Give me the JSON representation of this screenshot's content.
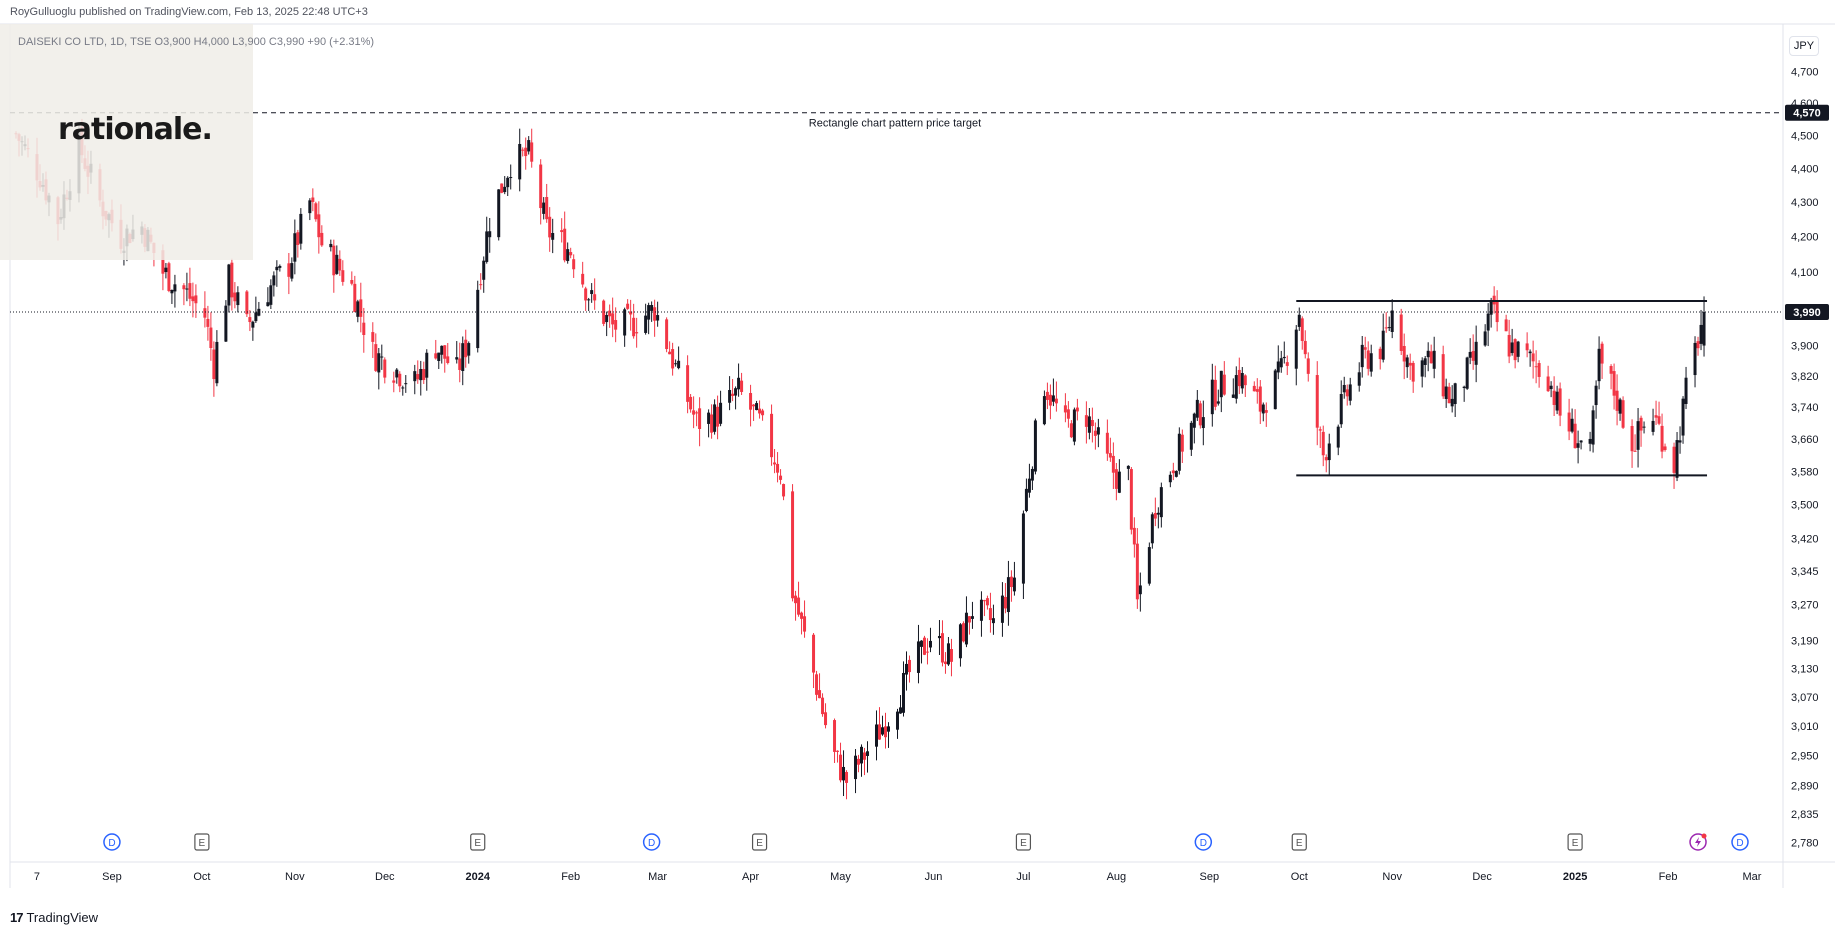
{
  "header": {
    "published": "RoyGulluoglu published on TradingView.com, Feb 13, 2025 22:48 UTC+3",
    "symbol_line": "DAISEKI CO LTD, 1D, TSE  O3,900  H4,000  L3,900  C3,990  +90 (+2.31%)"
  },
  "logo": {
    "text": "rationale."
  },
  "currency": "JPY",
  "footer": {
    "brand": "TradingView"
  },
  "annotation": {
    "text": "Rectangle chart pattern price target"
  },
  "colors": {
    "up": "#131722",
    "down": "#f23645",
    "event_d": "#2962ff",
    "event_e": "#555555",
    "price_label_bg": "#131722"
  },
  "chart_data": {
    "type": "candlestick",
    "title": "DAISEKI CO LTD, 1D, TSE",
    "ylabel": "JPY",
    "y_scale": "log",
    "ylim": [
      2770,
      4750
    ],
    "y_ticks": [
      "4,700",
      "4,600",
      "4,500",
      "4,400",
      "4,300",
      "4,200",
      "4,100",
      "4,000",
      "3,900",
      "3,820",
      "3,740",
      "3,660",
      "3,580",
      "3,500",
      "3,420",
      "3,345",
      "3,270",
      "3,190",
      "3,130",
      "3,070",
      "3,010",
      "2,950",
      "2,890",
      "2,835",
      "2,780"
    ],
    "y_tick_values": [
      4700,
      4600,
      4500,
      4400,
      4300,
      4200,
      4100,
      4000,
      3900,
      3820,
      3740,
      3660,
      3580,
      3500,
      3420,
      3345,
      3270,
      3190,
      3130,
      3070,
      3010,
      2950,
      2890,
      2835,
      2780
    ],
    "x_ticks": [
      "7",
      "Sep",
      "Oct",
      "Nov",
      "Dec",
      "2024",
      "Feb",
      "Mar",
      "Apr",
      "May",
      "Jun",
      "Jul",
      "Aug",
      "Sep",
      "Oct",
      "Nov",
      "Dec",
      "2025",
      "Feb",
      "Mar"
    ],
    "x_tick_bold": [
      false,
      false,
      false,
      false,
      false,
      true,
      false,
      false,
      false,
      false,
      false,
      false,
      false,
      false,
      false,
      false,
      false,
      true,
      false,
      false
    ],
    "x_tick_dates": [
      "2023-08-07",
      "2023-09-01",
      "2023-10-01",
      "2023-11-01",
      "2023-12-01",
      "2024-01-01",
      "2024-02-01",
      "2024-03-01",
      "2024-04-01",
      "2024-05-01",
      "2024-06-01",
      "2024-07-01",
      "2024-08-01",
      "2024-09-01",
      "2024-10-01",
      "2024-11-01",
      "2024-12-01",
      "2025-01-01",
      "2025-02-01",
      "2025-03-01"
    ],
    "last_price": 3990,
    "last_price_label": "3,990",
    "target_price": 4570,
    "target_price_label": "4,570",
    "rectangle": {
      "top": 4020,
      "bottom": 3570,
      "start": "2024-09-30",
      "end": "2025-02-14"
    },
    "events": [
      {
        "type": "D",
        "date": "2023-09-01"
      },
      {
        "type": "E",
        "date": "2023-10-01"
      },
      {
        "type": "E",
        "date": "2024-01-01"
      },
      {
        "type": "D",
        "date": "2024-02-28"
      },
      {
        "type": "E",
        "date": "2024-04-04"
      },
      {
        "type": "E",
        "date": "2024-07-01"
      },
      {
        "type": "D",
        "date": "2024-08-30"
      },
      {
        "type": "E",
        "date": "2024-10-01"
      },
      {
        "type": "E",
        "date": "2025-01-01"
      },
      {
        "type": "flash",
        "date": "2025-02-11"
      },
      {
        "type": "D",
        "date": "2025-02-25"
      }
    ],
    "series": [
      {
        "name": "DAISEKI CO LTD",
        "anchors": [
          [
            "2023-07-30",
            4520
          ],
          [
            "2023-08-08",
            4380
          ],
          [
            "2023-08-14",
            4250
          ],
          [
            "2023-08-21",
            4470
          ],
          [
            "2023-08-28",
            4300
          ],
          [
            "2023-09-04",
            4200
          ],
          [
            "2023-09-11",
            4230
          ],
          [
            "2023-09-18",
            4100
          ],
          [
            "2023-09-25",
            4050
          ],
          [
            "2023-10-02",
            3980
          ],
          [
            "2023-10-05",
            3850
          ],
          [
            "2023-10-10",
            4080
          ],
          [
            "2023-10-16",
            3950
          ],
          [
            "2023-10-23",
            4050
          ],
          [
            "2023-10-30",
            4120
          ],
          [
            "2023-11-06",
            4300
          ],
          [
            "2023-11-10",
            4180
          ],
          [
            "2023-11-20",
            4060
          ],
          [
            "2023-11-27",
            3880
          ],
          [
            "2023-12-04",
            3840
          ],
          [
            "2023-12-11",
            3800
          ],
          [
            "2023-12-18",
            3900
          ],
          [
            "2023-12-25",
            3830
          ],
          [
            "2023-12-29",
            3920
          ],
          [
            "2024-01-05",
            4250
          ],
          [
            "2024-01-12",
            4420
          ],
          [
            "2024-01-18",
            4440
          ],
          [
            "2024-01-24",
            4220
          ],
          [
            "2024-02-01",
            4160
          ],
          [
            "2024-02-08",
            4020
          ],
          [
            "2024-02-15",
            3950
          ],
          [
            "2024-02-22",
            3960
          ],
          [
            "2024-02-29",
            4000
          ],
          [
            "2024-03-07",
            3840
          ],
          [
            "2024-03-14",
            3700
          ],
          [
            "2024-03-21",
            3720
          ],
          [
            "2024-03-28",
            3780
          ],
          [
            "2024-04-04",
            3700
          ],
          [
            "2024-04-11",
            3580
          ],
          [
            "2024-04-15",
            3300
          ],
          [
            "2024-04-22",
            3120
          ],
          [
            "2024-04-28",
            2960
          ],
          [
            "2024-05-03",
            2900
          ],
          [
            "2024-05-10",
            2960
          ],
          [
            "2024-05-17",
            3030
          ],
          [
            "2024-05-24",
            3120
          ],
          [
            "2024-05-31",
            3200
          ],
          [
            "2024-06-07",
            3150
          ],
          [
            "2024-06-14",
            3260
          ],
          [
            "2024-06-21",
            3230
          ],
          [
            "2024-06-28",
            3330
          ],
          [
            "2024-07-03",
            3580
          ],
          [
            "2024-07-08",
            3800
          ],
          [
            "2024-07-15",
            3690
          ],
          [
            "2024-07-22",
            3720
          ],
          [
            "2024-07-29",
            3600
          ],
          [
            "2024-08-02",
            3560
          ],
          [
            "2024-08-05",
            3570
          ],
          [
            "2024-08-08",
            3270
          ],
          [
            "2024-08-14",
            3500
          ],
          [
            "2024-08-21",
            3620
          ],
          [
            "2024-08-28",
            3720
          ],
          [
            "2024-09-04",
            3790
          ],
          [
            "2024-09-11",
            3820
          ],
          [
            "2024-09-18",
            3740
          ],
          [
            "2024-09-25",
            3830
          ],
          [
            "2024-10-01",
            3990
          ],
          [
            "2024-10-04",
            3800
          ],
          [
            "2024-10-09",
            3620
          ],
          [
            "2024-10-15",
            3740
          ],
          [
            "2024-10-22",
            3860
          ],
          [
            "2024-10-29",
            3900
          ],
          [
            "2024-11-01",
            3990
          ],
          [
            "2024-11-07",
            3840
          ],
          [
            "2024-11-14",
            3860
          ],
          [
            "2024-11-21",
            3750
          ],
          [
            "2024-11-28",
            3860
          ],
          [
            "2024-12-04",
            3990
          ],
          [
            "2024-12-10",
            3900
          ],
          [
            "2024-12-17",
            3860
          ],
          [
            "2024-12-23",
            3820
          ],
          [
            "2024-12-27",
            3720
          ],
          [
            "2025-01-06",
            3620
          ],
          [
            "2025-01-09",
            3860
          ],
          [
            "2025-01-14",
            3780
          ],
          [
            "2025-01-20",
            3650
          ],
          [
            "2025-01-27",
            3720
          ],
          [
            "2025-02-03",
            3600
          ],
          [
            "2025-02-07",
            3780
          ],
          [
            "2025-02-13",
            3990
          ]
        ]
      }
    ]
  }
}
